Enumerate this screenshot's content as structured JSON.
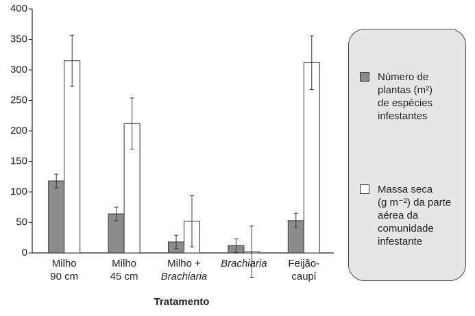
{
  "chart_data": {
    "type": "bar",
    "x_label": "Tratamento",
    "categories": [
      "Milho\n90 cm",
      "Milho\n45 cm",
      "Milho +\nBrachiaria",
      "Brachiaria",
      "Feijão-\ncaupi"
    ],
    "series": [
      {
        "name": "Número de\nplantas (m²)\nde espécies\ninfestantes",
        "color": "#8c8c8c",
        "values": [
          118,
          64,
          18,
          12,
          53
        ],
        "errors": [
          11,
          11,
          11,
          11,
          12
        ]
      },
      {
        "name": "Massa seca\n(g m⁻²) da parte\naérea da\ncomunidade\ninfestante",
        "color": "#ffffff",
        "values": [
          315,
          212,
          52,
          2,
          312
        ],
        "errors": [
          42,
          42,
          42,
          42,
          44
        ]
      }
    ],
    "ylim": [
      0,
      400
    ],
    "yticks": [
      0,
      50,
      100,
      150,
      200,
      250,
      300,
      350,
      400
    ]
  }
}
